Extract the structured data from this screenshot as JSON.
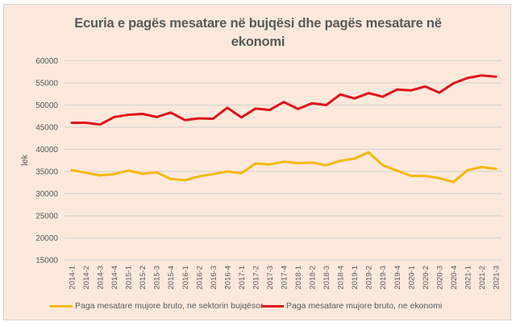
{
  "chart_data": {
    "type": "line",
    "title": "Ecuria e pagës mesatare në bujqësi dhe pagës mesatare në ekonomi",
    "title_lines": [
      "Ecuria e pagës mesatare në bujqësi dhe pagës mesatare në",
      "ekonomi"
    ],
    "xlabel": "",
    "ylabel": "lek",
    "ylim": [
      15000,
      60000
    ],
    "yticks": [
      15000,
      20000,
      25000,
      30000,
      35000,
      40000,
      45000,
      50000,
      55000,
      60000
    ],
    "ytick_labels": [
      "15000",
      "20000",
      "25000",
      "30000",
      "35000",
      "40000",
      "45000",
      "50000",
      "55000",
      "60000"
    ],
    "grid": true,
    "legend_position": "bottom",
    "categories": [
      "2014-1",
      "2014-2",
      "2014-3",
      "2014-4",
      "2015-1",
      "2015-2",
      "2015-3",
      "2015-4",
      "2016-1",
      "2016-2",
      "2016-3",
      "2016-4",
      "2017-1",
      "2017-2",
      "2017-3",
      "2017-4",
      "2018-1",
      "2018-2",
      "2018-3",
      "2018-4",
      "2019-1",
      "2019-2",
      "2019-3",
      "2019-4",
      "2020-1",
      "2020-2",
      "2020-3",
      "2020-4",
      "2021-1",
      "2021-2",
      "2021-3"
    ],
    "series": [
      {
        "name": "Paga mesatare mujore bruto, ne sektorin bujqësor",
        "color": "#f5b800",
        "values": [
          35300,
          34700,
          34100,
          34400,
          35200,
          34500,
          34800,
          33300,
          33000,
          33900,
          34400,
          35000,
          34600,
          36800,
          36600,
          37200,
          36900,
          37000,
          36400,
          37400,
          37900,
          39300,
          36400,
          35200,
          34000,
          34000,
          33500,
          32600,
          35300,
          36000,
          35600
        ]
      },
      {
        "name": "Paga mesatare mujore bruto, ne ekonomi",
        "color": "#e0121a",
        "values": [
          46000,
          46000,
          45600,
          47300,
          47800,
          48000,
          47300,
          48300,
          46600,
          47000,
          46900,
          49400,
          47200,
          49200,
          48900,
          50700,
          49100,
          50400,
          50000,
          52400,
          51500,
          52700,
          51900,
          53500,
          53300,
          54200,
          52800,
          54900,
          56100,
          56700,
          56400
        ]
      }
    ]
  }
}
